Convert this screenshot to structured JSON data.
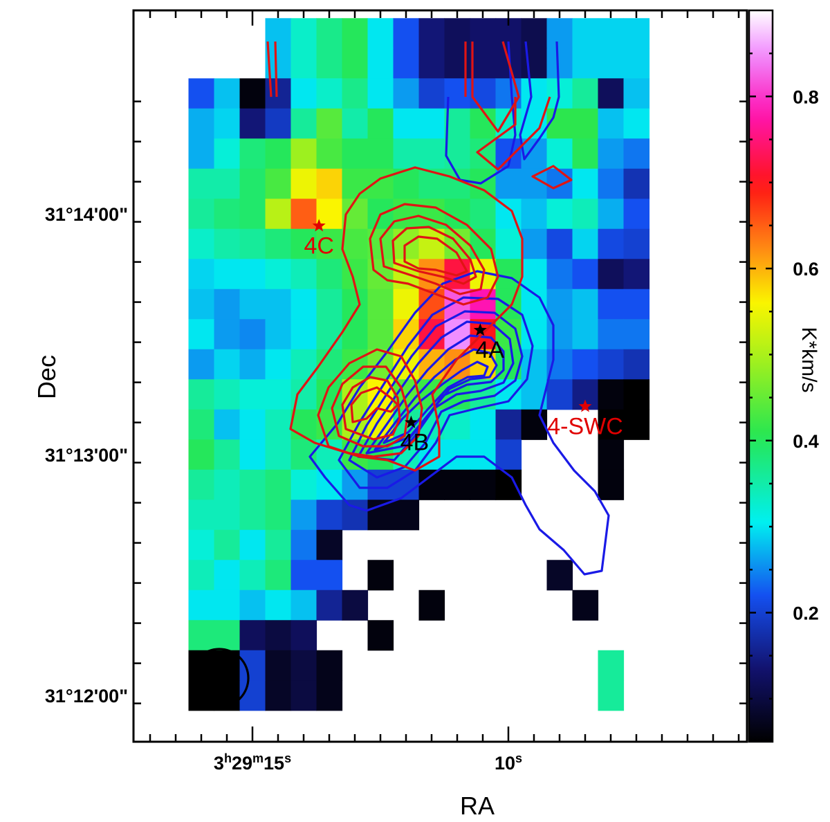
{
  "chart_data": {
    "type": "heatmap",
    "xlabel": "RA",
    "ylabel": "Dec",
    "colorbar_label": "K*km/s",
    "color_range": [
      0.05,
      0.9
    ],
    "colorbar_ticks": [
      {
        "value": 0.2,
        "label": "0.2"
      },
      {
        "value": 0.4,
        "label": "0.4"
      },
      {
        "value": 0.6,
        "label": "0.6"
      },
      {
        "value": 0.8,
        "label": "0.8"
      }
    ],
    "ra_ticks_s": [
      {
        "value": 15,
        "label_hm": "3",
        "label_h": "h",
        "label_m_val": "29",
        "label_m": "m",
        "label_s_val": "15",
        "label_s": "s"
      },
      {
        "value": 10,
        "label_hm": "",
        "label_h": "",
        "label_m_val": "",
        "label_m": "",
        "label_s_val": "10",
        "label_s": "s"
      }
    ],
    "dec_ticks": [
      {
        "value": "31°14'00\"",
        "offset_arcsec": 60
      },
      {
        "value": "31°13'00\"",
        "offset_arcsec": 0
      },
      {
        "value": "31°12'00\"",
        "offset_arcsec": -60
      }
    ],
    "grid": {
      "ra_start_s": 16.0,
      "ra_step_s": -0.5,
      "dec_top_offset_arcsec": 105,
      "dec_step_arcsec": -7.5,
      "rows": [
        [
          null,
          null,
          null,
          0.28,
          0.33,
          0.37,
          0.4,
          0.3,
          0.22,
          0.14,
          0.12,
          0.13,
          0.13,
          0.11,
          0.26,
          0.29,
          0.29,
          0.29
        ],
        [
          null,
          null,
          null,
          0.28,
          0.33,
          0.37,
          0.4,
          0.3,
          0.22,
          0.14,
          0.12,
          0.13,
          0.13,
          0.11,
          0.26,
          0.29,
          0.29,
          0.29
        ],
        [
          0.22,
          0.28,
          0.06,
          0.16,
          0.3,
          0.33,
          0.37,
          0.3,
          0.26,
          0.2,
          0.22,
          0.21,
          0.24,
          0.3,
          0.32,
          0.36,
          0.12,
          0.28
        ],
        [
          0.27,
          0.29,
          0.14,
          0.19,
          0.36,
          0.44,
          0.35,
          0.4,
          0.3,
          0.3,
          0.36,
          0.4,
          0.33,
          0.3,
          0.41,
          0.41,
          0.28,
          0.3
        ],
        [
          0.27,
          0.32,
          0.38,
          0.4,
          0.49,
          0.43,
          0.4,
          0.4,
          0.35,
          0.35,
          0.36,
          0.38,
          0.22,
          0.26,
          0.32,
          0.4,
          0.26,
          0.24
        ],
        [
          0.35,
          0.35,
          0.39,
          0.43,
          0.55,
          0.58,
          0.42,
          0.42,
          0.4,
          0.38,
          0.38,
          0.4,
          0.26,
          0.26,
          0.24,
          0.3,
          0.24,
          0.18
        ],
        [
          0.36,
          0.38,
          0.39,
          0.51,
          0.65,
          0.56,
          0.45,
          0.4,
          0.42,
          0.42,
          0.4,
          0.38,
          0.3,
          0.28,
          0.32,
          0.34,
          0.27,
          0.22
        ],
        [
          0.33,
          0.35,
          0.36,
          0.38,
          0.4,
          0.42,
          0.43,
          0.44,
          0.48,
          0.52,
          0.46,
          0.4,
          0.32,
          0.26,
          0.21,
          0.29,
          0.21,
          0.2
        ],
        [
          0.29,
          0.3,
          0.3,
          0.32,
          0.34,
          0.38,
          0.42,
          0.45,
          0.52,
          0.62,
          0.72,
          0.55,
          0.4,
          0.3,
          0.24,
          0.22,
          0.12,
          0.14
        ],
        [
          0.28,
          0.26,
          0.28,
          0.28,
          0.3,
          0.36,
          0.4,
          0.44,
          0.55,
          0.66,
          0.82,
          0.78,
          0.4,
          0.3,
          0.26,
          0.28,
          0.22,
          0.22
        ],
        [
          0.3,
          0.26,
          0.25,
          0.28,
          0.3,
          0.36,
          0.4,
          0.44,
          0.58,
          0.72,
          0.85,
          0.7,
          0.42,
          0.3,
          0.26,
          0.28,
          0.24,
          0.24
        ],
        [
          0.26,
          0.29,
          0.27,
          0.3,
          0.34,
          0.38,
          0.42,
          0.46,
          0.55,
          0.6,
          0.62,
          0.58,
          0.4,
          0.28,
          0.24,
          0.22,
          0.2,
          0.18
        ],
        [
          0.36,
          0.34,
          0.32,
          0.32,
          0.35,
          0.4,
          0.5,
          0.56,
          0.44,
          0.42,
          0.4,
          0.36,
          0.3,
          0.28,
          0.2,
          0.15,
          0.06,
          0.05
        ],
        [
          0.38,
          0.28,
          0.3,
          0.34,
          0.4,
          0.42,
          0.5,
          0.55,
          0.36,
          0.34,
          0.33,
          0.3,
          0.16,
          0.06,
          null,
          null,
          0.05,
          0.05
        ],
        [
          0.4,
          0.36,
          0.3,
          0.34,
          0.38,
          0.34,
          0.42,
          0.4,
          0.34,
          0.3,
          0.3,
          0.3,
          0.2,
          null,
          null,
          null,
          0.06,
          null
        ],
        [
          0.36,
          0.34,
          0.36,
          0.38,
          0.32,
          0.3,
          0.26,
          0.2,
          0.2,
          0.06,
          0.06,
          0.06,
          0.05,
          null,
          null,
          null,
          0.06,
          null
        ],
        [
          0.34,
          0.34,
          0.36,
          0.38,
          0.26,
          0.2,
          0.18,
          0.07,
          0.07,
          null,
          null,
          null,
          null,
          null,
          null,
          null,
          null,
          null
        ],
        [
          0.32,
          0.36,
          0.3,
          0.36,
          0.24,
          0.08,
          null,
          null,
          null,
          null,
          null,
          null,
          null,
          null,
          null,
          null,
          null,
          null
        ],
        [
          0.34,
          0.3,
          0.34,
          0.38,
          0.22,
          0.22,
          null,
          0.06,
          null,
          null,
          null,
          null,
          null,
          null,
          0.08,
          null,
          null,
          null
        ],
        [
          0.3,
          0.3,
          0.28,
          0.3,
          0.28,
          0.16,
          0.1,
          null,
          null,
          0.06,
          null,
          null,
          null,
          null,
          null,
          0.07,
          null,
          null
        ],
        [
          0.38,
          0.38,
          0.12,
          0.1,
          0.12,
          null,
          null,
          0.06,
          null,
          null,
          null,
          null,
          null,
          null,
          null,
          null,
          null,
          null
        ],
        [
          0.05,
          0.05,
          0.2,
          0.08,
          0.1,
          0.07,
          null,
          null,
          null,
          null,
          null,
          null,
          null,
          null,
          null,
          null,
          0.36,
          null
        ],
        [
          0.05,
          0.05,
          0.2,
          0.08,
          0.1,
          0.07,
          null,
          null,
          null,
          null,
          null,
          null,
          null,
          null,
          null,
          null,
          0.36,
          null
        ]
      ]
    },
    "sources": [
      {
        "name": "4A",
        "color": "#000000",
        "ra_s": 10.55,
        "dec_offset_arcsec": 31
      },
      {
        "name": "4B",
        "color": "#000000",
        "ra_s": 11.9,
        "dec_offset_arcsec": 8
      },
      {
        "name": "4C",
        "color": "#e00000",
        "ra_s": 13.7,
        "dec_offset_arcsec": 57
      },
      {
        "name": "4-SWC",
        "color": "#e00000",
        "ra_s": 8.5,
        "dec_offset_arcsec": 12
      }
    ],
    "contours": {
      "red_color": "#e01010",
      "blue_color": "#1010e0",
      "note": ""
    },
    "beam": {
      "ra_s": 15.65,
      "dec_offset_arcsec": -56
    }
  }
}
